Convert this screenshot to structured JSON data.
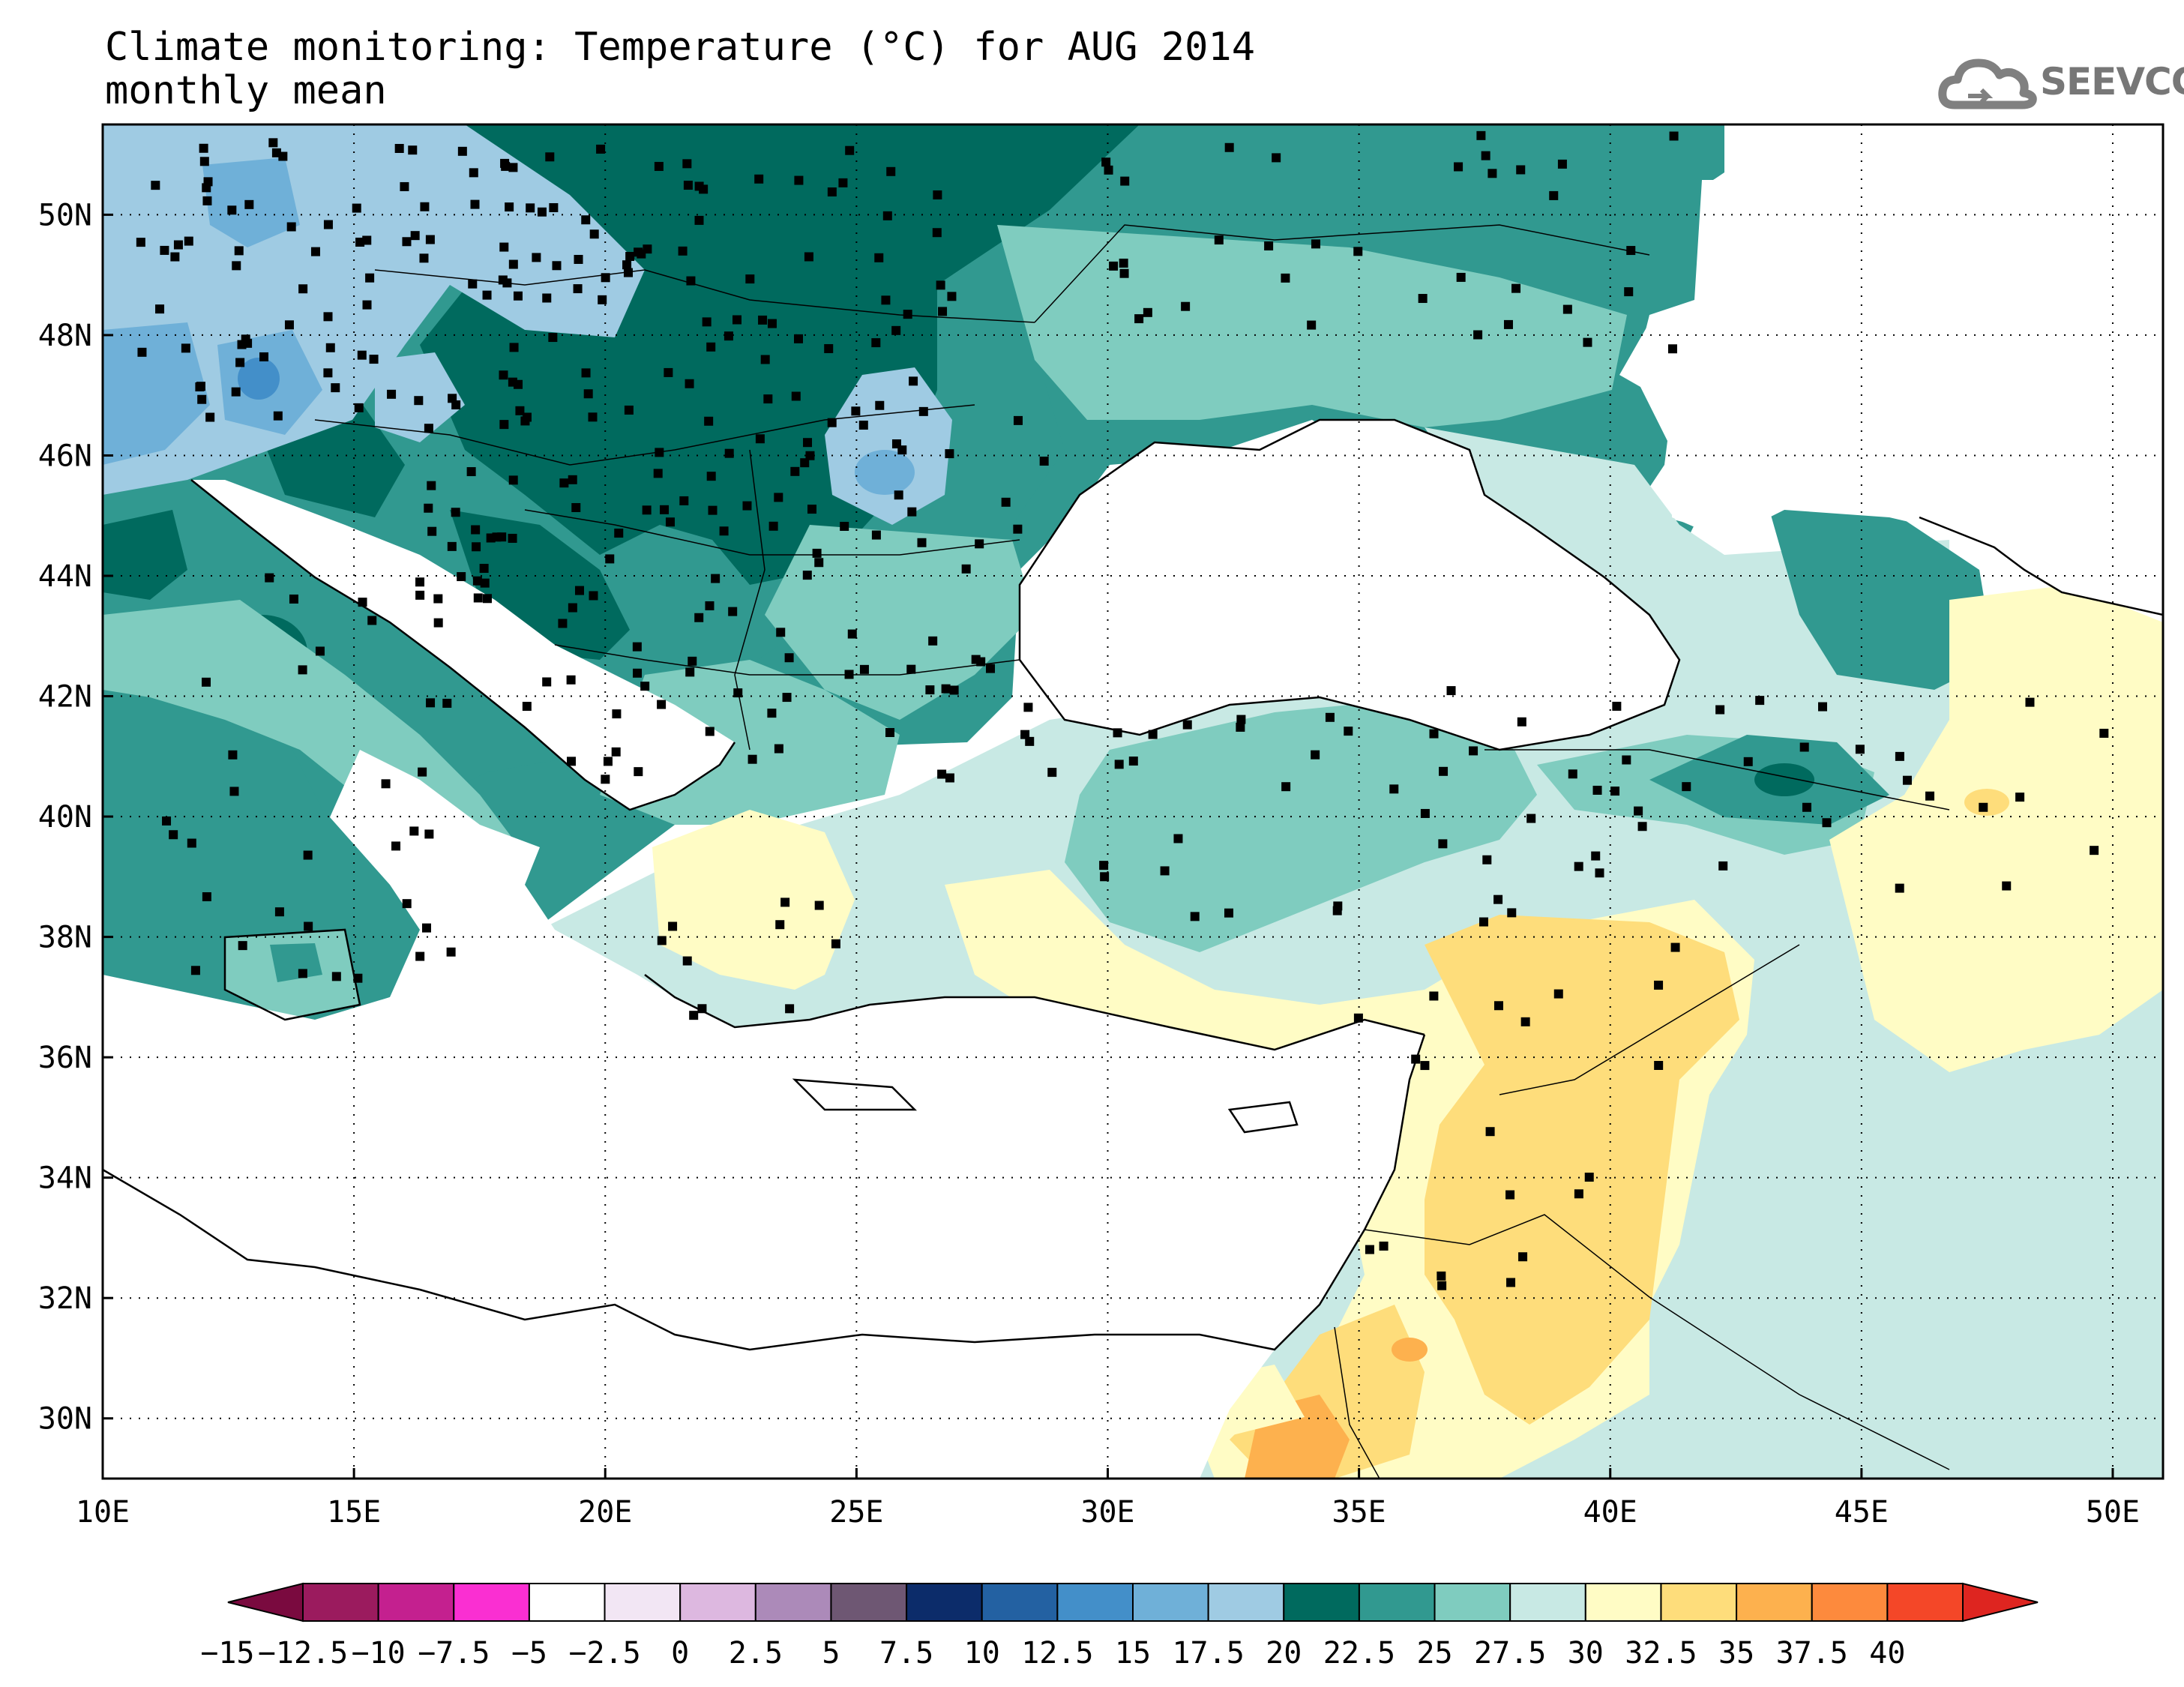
{
  "header": {
    "title_line1": "Climate monitoring: Temperature (°C) for AUG 2014",
    "title_line2": "monthly mean"
  },
  "logo": {
    "text": "SEEVCCC",
    "icon": "cloud-icon"
  },
  "map": {
    "lon_range": [
      10,
      51
    ],
    "lat_range": [
      29,
      51.5
    ],
    "lon_ticks": [
      "10E",
      "15E",
      "20E",
      "25E",
      "30E",
      "35E",
      "40E",
      "45E",
      "50E"
    ],
    "lat_ticks": [
      "30N",
      "32N",
      "34N",
      "36N",
      "38N",
      "40N",
      "42N",
      "44N",
      "46N",
      "48N",
      "50N"
    ],
    "gridlines": true,
    "gridline_style": "dotted"
  },
  "colorbar": {
    "labels": [
      "-15",
      "-12.5",
      "-10",
      "-7.5",
      "-5",
      "-2.5",
      "0",
      "2.5",
      "5",
      "7.5",
      "10",
      "12.5",
      "15",
      "17.5",
      "20",
      "22.5",
      "25",
      "27.5",
      "30",
      "32.5",
      "35",
      "37.5",
      "40"
    ],
    "colors": [
      "#9b1b5e",
      "#c4208f",
      "#fa2fd2",
      "#ffffff",
      "#f2e6f4",
      "#ddb8e0",
      "#ac8ab9",
      "#6e5773",
      "#0c2c6a",
      "#2361a2",
      "#438fc9",
      "#6fb0d8",
      "#9fcbe3",
      "#006a5e",
      "#319990",
      "#7fccbf",
      "#c8e9e4",
      "#fffcc5",
      "#fedd7b",
      "#fdb14e",
      "#fd8a3d",
      "#f44728"
    ],
    "under_color": "#7a0a3f",
    "over_color": "#de2520"
  }
}
